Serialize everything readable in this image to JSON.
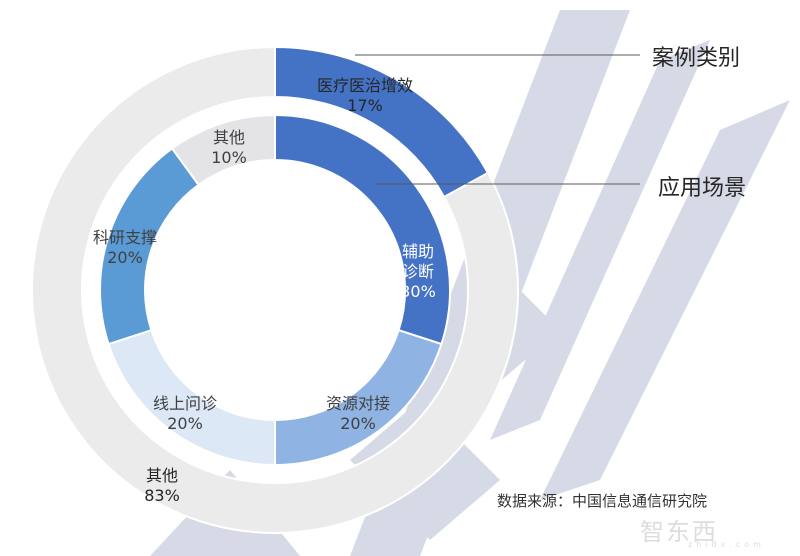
{
  "chart_data": {
    "type": "pie",
    "subtype": "nested-donut",
    "title": "",
    "series": [
      {
        "name": "案例类别",
        "ring": "outer",
        "slices": [
          {
            "label": "医疗医治增效",
            "value": 17,
            "color": "#4472C4"
          },
          {
            "label": "其他",
            "value": 83,
            "color": "#EBEBEB"
          }
        ]
      },
      {
        "name": "应用场景",
        "ring": "inner",
        "slices": [
          {
            "label": "辅助诊断",
            "value": 30,
            "color": "#4472C4"
          },
          {
            "label": "资源对接",
            "value": 20,
            "color": "#8FB4E3"
          },
          {
            "label": "线上问诊",
            "value": 20,
            "color": "#DCE8F5"
          },
          {
            "label": "科研支撑",
            "value": 20,
            "color": "#5B9BD5"
          },
          {
            "label": "其他",
            "value": 10,
            "color": "#E4E3E6"
          }
        ]
      }
    ],
    "legend_position": "right-callouts"
  },
  "labels": {
    "outer": [
      {
        "name": "医疗医治增效",
        "pct": "17%"
      },
      {
        "name": "其他",
        "pct": "83%"
      }
    ],
    "inner": [
      {
        "name1": "辅助",
        "name2": "诊断",
        "pct": "30%"
      },
      {
        "name": "资源对接",
        "pct": "20%"
      },
      {
        "name": "线上问诊",
        "pct": "20%"
      },
      {
        "name": "科研支撑",
        "pct": "20%"
      },
      {
        "name": "其他",
        "pct": "10%"
      }
    ]
  },
  "callouts": {
    "outer": "案例类别",
    "inner": "应用场景"
  },
  "source": "数据来源：中国信息通信研究院",
  "watermark": {
    "text": "智东西",
    "sub": "zhidx.com"
  },
  "colors": {
    "watermark_shape": "#C9CEDE"
  }
}
